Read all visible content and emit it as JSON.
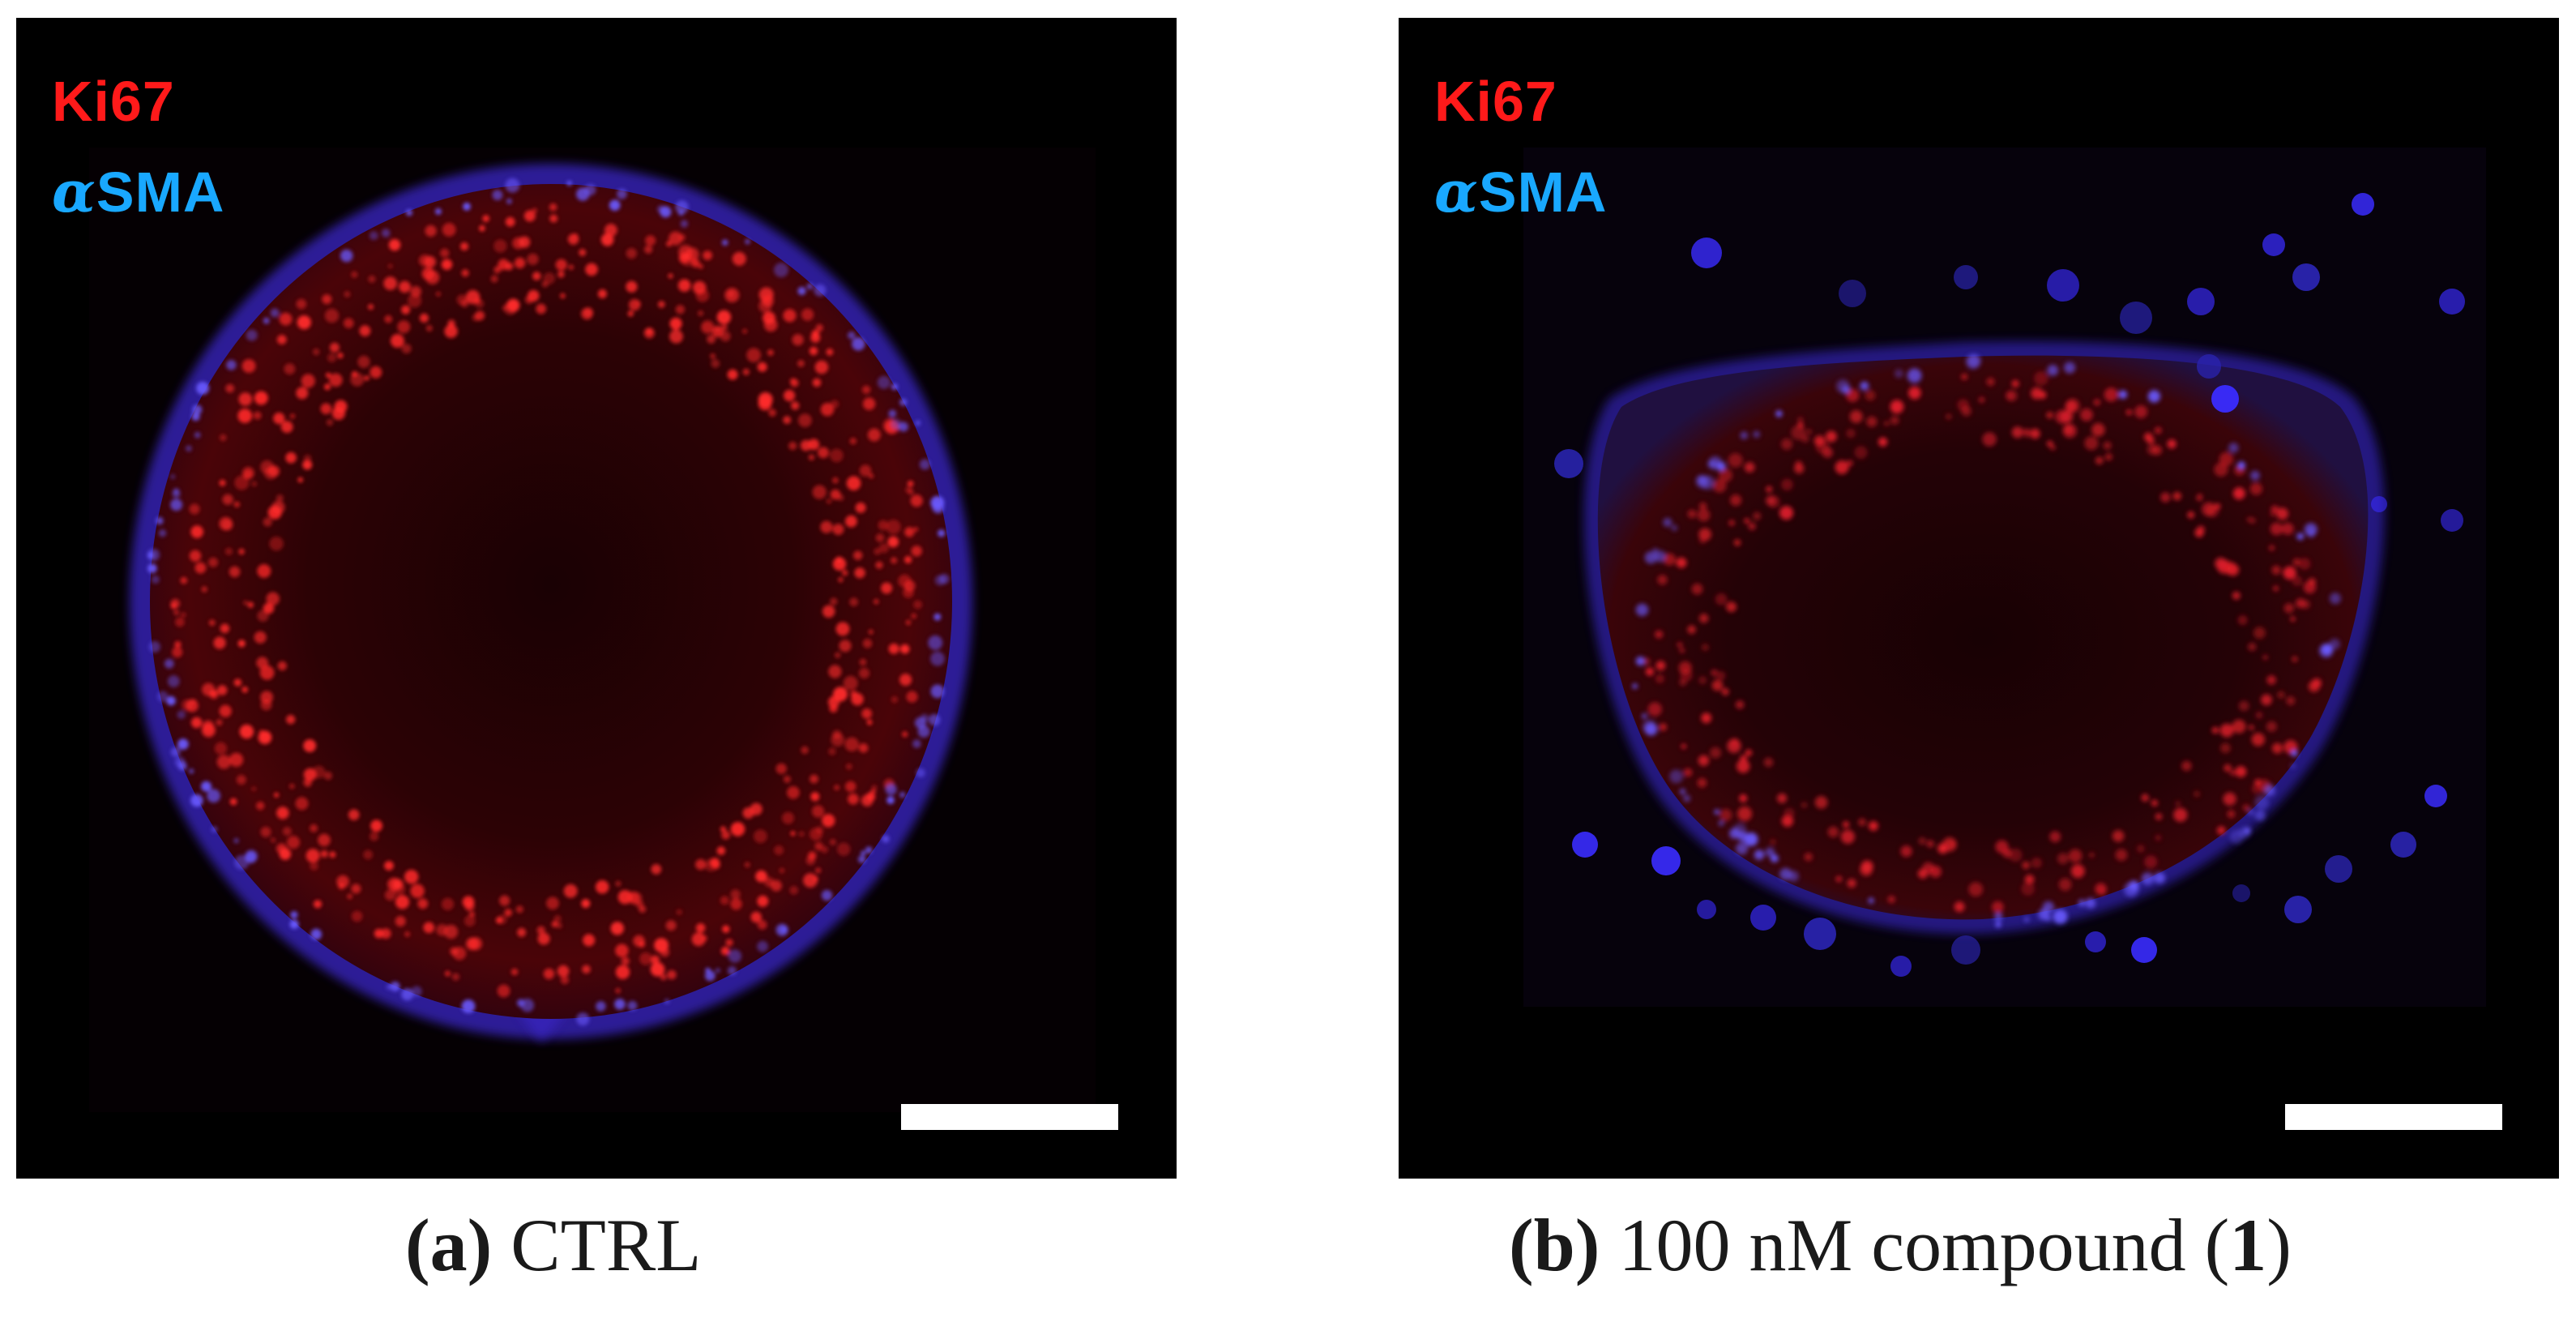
{
  "panels": [
    {
      "stain_labels": {
        "ki67": "Ki67",
        "sma_prefix": "α",
        "sma": "SMA"
      },
      "caption": {
        "letter": "(a)",
        "text": "CTRL"
      },
      "colors": {
        "ki67": "#ff1a1a",
        "sma": "#19a8ff",
        "tissue_red": "#3a0306",
        "edge_blue": "#4a2cff"
      }
    },
    {
      "stain_labels": {
        "ki67": "Ki67",
        "sma_prefix": "α",
        "sma": "SMA"
      },
      "caption": {
        "letter": "(b)",
        "text_pre": "100 nM compound (",
        "compound_num": "1",
        "text_post": ")"
      },
      "colors": {
        "ki67": "#ff1a1a",
        "sma": "#19a8ff",
        "tissue_red": "#2a0308",
        "edge_blue": "#4a2cff"
      }
    }
  ]
}
